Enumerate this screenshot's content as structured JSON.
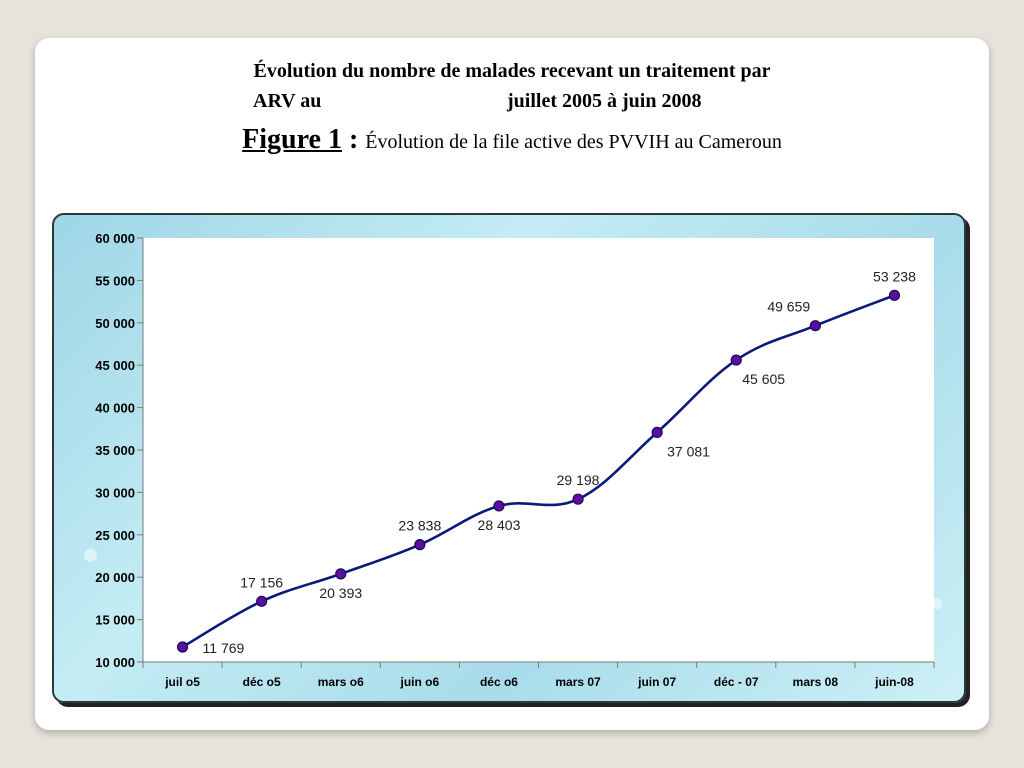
{
  "header": {
    "title_line1": "Évolution du nombre de malades recevant un traitement par",
    "title_line2_a": "ARV au",
    "title_line2_b": "juillet 2005 à juin 2008",
    "figure_label": "Figure 1",
    "figure_colon": " : ",
    "figure_caption": "Évolution de la file active des PVVIH au Cameroun"
  },
  "chart_data": {
    "type": "line",
    "categories": [
      "juil o5",
      "déc o5",
      "mars o6",
      "juin o6",
      "déc o6",
      "mars 07",
      "juin 07",
      "déc - 07",
      "mars 08",
      "juin-08"
    ],
    "values": [
      11769,
      17156,
      20393,
      23838,
      28403,
      29198,
      37081,
      45605,
      49659,
      53238
    ],
    "data_labels": [
      "11 769",
      "17 156",
      "20 393",
      "23 838",
      "28 403",
      "29 198",
      "37 081",
      "45 605",
      "49 659",
      "53 238"
    ],
    "label_position": [
      "below",
      "above",
      "below",
      "above",
      "below",
      "above",
      "below",
      "below",
      "above",
      "above"
    ],
    "ylim": [
      10000,
      60000
    ],
    "yticks": [
      10000,
      15000,
      20000,
      25000,
      30000,
      35000,
      40000,
      45000,
      50000,
      55000,
      60000
    ],
    "ytick_labels": [
      "10 000",
      "15 000",
      "20 000",
      "25 000",
      "30 000",
      "35 000",
      "40 000",
      "45 000",
      "50 000",
      "55 000",
      "60 000"
    ],
    "line_color": "#0a1a7a",
    "marker_color": "#5a0fa0",
    "grid": false
  }
}
